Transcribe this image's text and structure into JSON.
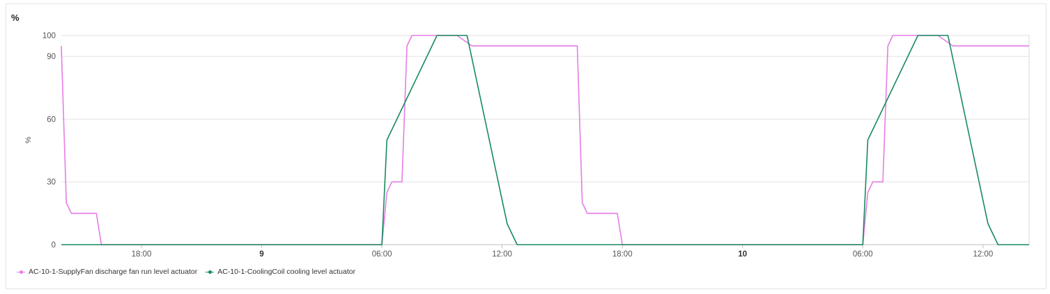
{
  "chart_data": {
    "type": "line",
    "title": "%",
    "ylabel": "%",
    "ylim": [
      0,
      100
    ],
    "yticks": [
      0,
      30,
      60,
      90,
      100
    ],
    "xlim": [
      "2024-??-08 14:00",
      "2024-??-10 14:20"
    ],
    "xticks": [
      {
        "label": "18:00",
        "h": 18,
        "bold": false
      },
      {
        "label": "9",
        "h": 24,
        "bold": true
      },
      {
        "label": "06:00",
        "h": 30,
        "bold": false
      },
      {
        "label": "12:00",
        "h": 36,
        "bold": false
      },
      {
        "label": "18:00",
        "h": 42,
        "bold": false
      },
      {
        "label": "10",
        "h": 48,
        "bold": true
      },
      {
        "label": "06:00",
        "h": 54,
        "bold": false
      },
      {
        "label": "12:00",
        "h": 60,
        "bold": false
      }
    ],
    "grid": true,
    "legend_position": "bottom-left",
    "series": [
      {
        "name": "AC-10-1-SupplyFan discharge fan run level actuator",
        "color": "#e57de6",
        "points": [
          [
            14.0,
            95
          ],
          [
            14.25,
            20
          ],
          [
            14.5,
            15
          ],
          [
            15.75,
            15
          ],
          [
            16.0,
            0
          ],
          [
            30.0,
            0
          ],
          [
            30.25,
            25
          ],
          [
            30.5,
            30
          ],
          [
            31.0,
            30
          ],
          [
            31.25,
            95
          ],
          [
            31.5,
            100
          ],
          [
            33.75,
            100
          ],
          [
            34.5,
            95
          ],
          [
            39.75,
            95
          ],
          [
            40.0,
            20
          ],
          [
            40.25,
            15
          ],
          [
            41.75,
            15
          ],
          [
            42.0,
            0
          ],
          [
            54.0,
            0
          ],
          [
            54.25,
            25
          ],
          [
            54.5,
            30
          ],
          [
            55.0,
            30
          ],
          [
            55.25,
            95
          ],
          [
            55.5,
            100
          ],
          [
            57.75,
            100
          ],
          [
            58.5,
            95
          ],
          [
            62.3,
            95
          ]
        ]
      },
      {
        "name": "AC-10-1-CoolingCoil cooling level actuator",
        "color": "#178a5d",
        "points": [
          [
            14.0,
            0
          ],
          [
            30.0,
            0
          ],
          [
            30.25,
            50
          ],
          [
            32.75,
            100
          ],
          [
            34.25,
            100
          ],
          [
            36.25,
            10
          ],
          [
            36.75,
            0
          ],
          [
            54.0,
            0
          ],
          [
            54.25,
            50
          ],
          [
            56.75,
            100
          ],
          [
            58.25,
            100
          ],
          [
            60.25,
            10
          ],
          [
            60.75,
            0
          ],
          [
            62.3,
            0
          ]
        ]
      }
    ]
  }
}
